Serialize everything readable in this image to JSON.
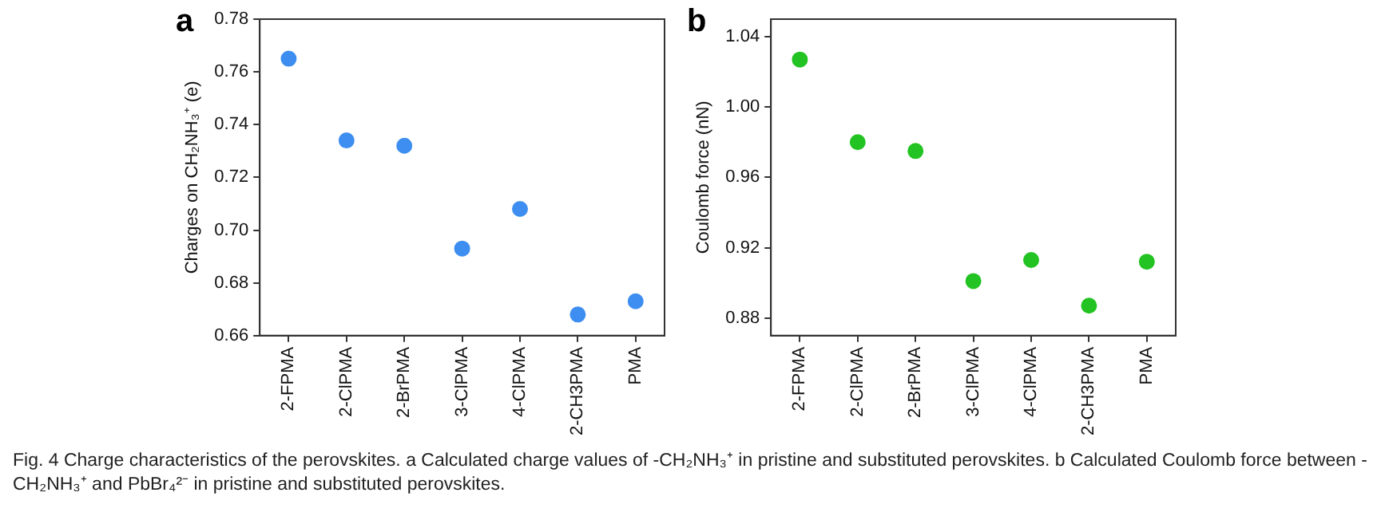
{
  "chart_data": [
    {
      "type": "scatter",
      "title": "a",
      "ylabel": "Charges on CH₂NH₃⁺ (e)",
      "categories": [
        "2-FPMA",
        "2-ClPMA",
        "2-BrPMA",
        "3-ClPMA",
        "4-ClPMA",
        "2-CH3PMA",
        "PMA"
      ],
      "series": [
        {
          "color": "#3d8ef0",
          "values": [
            0.765,
            0.734,
            0.732,
            0.693,
            0.708,
            0.668,
            0.673
          ]
        }
      ],
      "ylim": [
        0.66,
        0.78
      ],
      "yticks": [
        0.66,
        0.68,
        {
          "value": 0.7,
          "label": "0.70"
        },
        0.72,
        0.74,
        0.76,
        0.78
      ],
      "marker": "circle",
      "grid": false,
      "legend": false,
      "annotations": [
        "Fig. 4 Charge characteristics of the perovskites. a Calculated charge values of -CH₂NH₃⁺ in pristine and substituted perovskites. b Calculated Coulomb force between -CH₂NH₃⁺ and PbBr₄²⁻ in pristine and substituted perovskites."
      ]
    },
    {
      "type": "scatter",
      "title": "b",
      "ylabel": "Coulomb force (nN)",
      "categories": [
        "2-FPMA",
        "2-ClPMA",
        "2-BrPMA",
        "3-ClPMA",
        "4-ClPMA",
        "2-CH3PMA",
        "PMA"
      ],
      "series": [
        {
          "color": "#22c322",
          "values": [
            1.027,
            0.98,
            0.975,
            0.901,
            0.913,
            0.887,
            0.912
          ]
        }
      ],
      "ylim": [
        0.87,
        1.05
      ],
      "yticks": [
        0.88,
        0.92,
        0.96,
        {
          "value": 1,
          "label": "1.00"
        },
        1.04
      ],
      "marker": "circle",
      "grid": false,
      "legend": false
    }
  ]
}
